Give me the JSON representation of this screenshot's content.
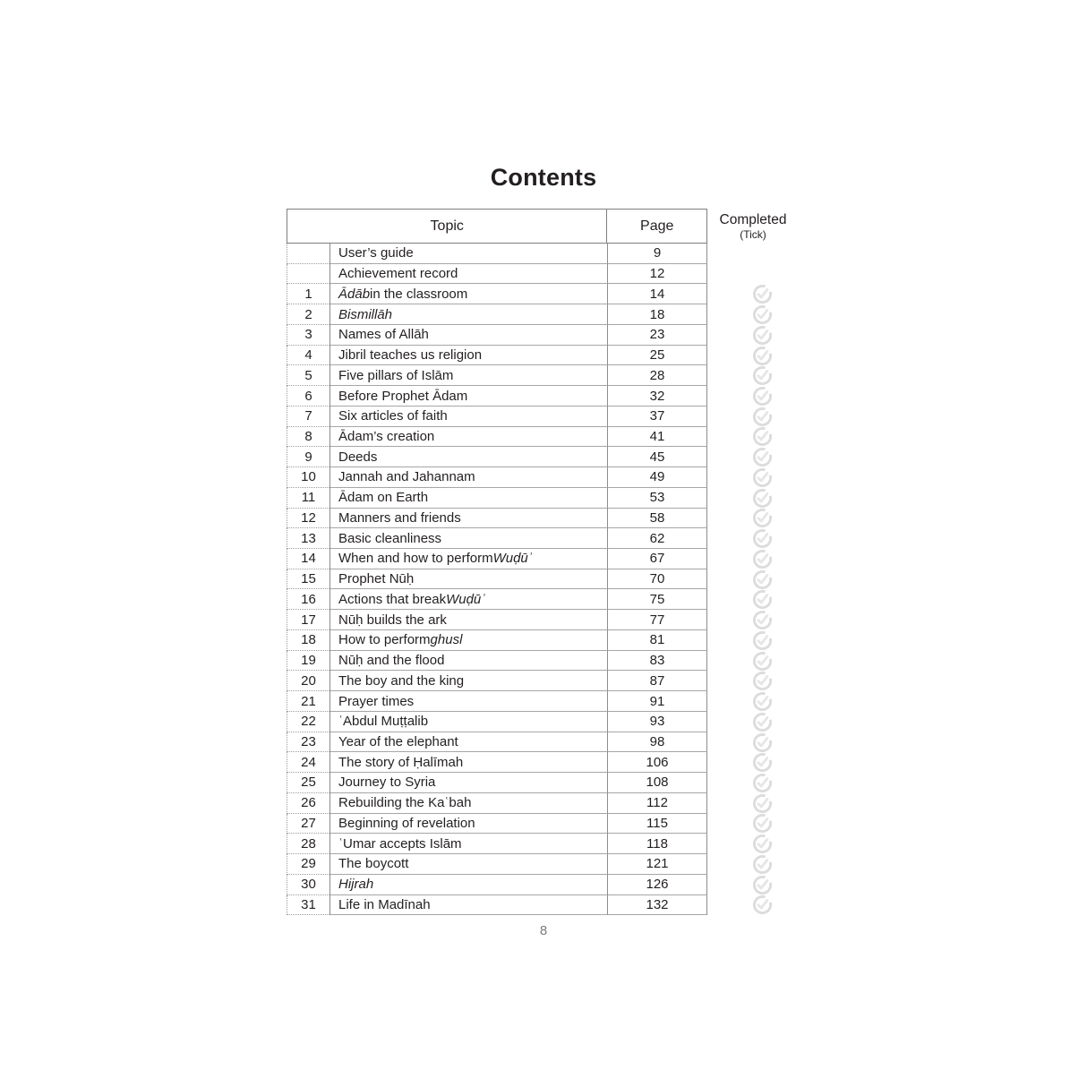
{
  "page": {
    "title": "Contents",
    "footer_page_number": "8"
  },
  "colors": {
    "text": "#231f20",
    "border_solid": "#8c8c8c",
    "border_row": "#a6a6a6",
    "border_dotted": "#9b9b9b",
    "tick_ring": "#dcdcdc",
    "tick_check": "#e6e6e6",
    "footer_gray": "#7b7b7b"
  },
  "table": {
    "headers": {
      "topic": "Topic",
      "page": "Page"
    },
    "completed_label": "Completed",
    "completed_sub": "(Tick)",
    "tick_icon": "check-circle-icon",
    "rows": [
      {
        "num": "",
        "topic": [
          {
            "text": "User’s guide",
            "italic": false
          }
        ],
        "page": "9",
        "tick": false
      },
      {
        "num": "",
        "topic": [
          {
            "text": "Achievement record",
            "italic": false
          }
        ],
        "page": "12",
        "tick": false
      },
      {
        "num": "1",
        "topic": [
          {
            "text": "Ādāb",
            "italic": true
          },
          {
            "text": " in the classroom",
            "italic": false
          }
        ],
        "page": "14",
        "tick": true
      },
      {
        "num": "2",
        "topic": [
          {
            "text": "Bismillāh",
            "italic": true
          }
        ],
        "page": "18",
        "tick": true
      },
      {
        "num": "3",
        "topic": [
          {
            "text": "Names of Allāh",
            "italic": false
          }
        ],
        "page": "23",
        "tick": true
      },
      {
        "num": "4",
        "topic": [
          {
            "text": "Jibril teaches us religion",
            "italic": false
          }
        ],
        "page": "25",
        "tick": true
      },
      {
        "num": "5",
        "topic": [
          {
            "text": "Five pillars of Islām",
            "italic": false
          }
        ],
        "page": "28",
        "tick": true
      },
      {
        "num": "6",
        "topic": [
          {
            "text": "Before Prophet Ādam",
            "italic": false
          }
        ],
        "page": "32",
        "tick": true
      },
      {
        "num": "7",
        "topic": [
          {
            "text": "Six articles of faith",
            "italic": false
          }
        ],
        "page": "37",
        "tick": true
      },
      {
        "num": "8",
        "topic": [
          {
            "text": "Ādam’s creation",
            "italic": false
          }
        ],
        "page": "41",
        "tick": true
      },
      {
        "num": "9",
        "topic": [
          {
            "text": "Deeds",
            "italic": false
          }
        ],
        "page": "45",
        "tick": true
      },
      {
        "num": "10",
        "topic": [
          {
            "text": "Jannah and Jahannam",
            "italic": false
          }
        ],
        "page": "49",
        "tick": true
      },
      {
        "num": "11",
        "topic": [
          {
            "text": "Ādam on Earth",
            "italic": false
          }
        ],
        "page": "53",
        "tick": true
      },
      {
        "num": "12",
        "topic": [
          {
            "text": "Manners and friends",
            "italic": false
          }
        ],
        "page": "58",
        "tick": true
      },
      {
        "num": "13",
        "topic": [
          {
            "text": "Basic cleanliness",
            "italic": false
          }
        ],
        "page": "62",
        "tick": true
      },
      {
        "num": "14",
        "topic": [
          {
            "text": "When and how to perform ",
            "italic": false
          },
          {
            "text": "Wuḍūʾ",
            "italic": true
          }
        ],
        "page": "67",
        "tick": true
      },
      {
        "num": "15",
        "topic": [
          {
            "text": "Prophet Nūḥ",
            "italic": false
          }
        ],
        "page": "70",
        "tick": true
      },
      {
        "num": "16",
        "topic": [
          {
            "text": "Actions that break ",
            "italic": false
          },
          {
            "text": "Wuḍūʾ",
            "italic": true
          }
        ],
        "page": "75",
        "tick": true
      },
      {
        "num": "17",
        "topic": [
          {
            "text": "Nūḥ builds the ark",
            "italic": false
          }
        ],
        "page": "77",
        "tick": true
      },
      {
        "num": "18",
        "topic": [
          {
            "text": "How to perform ",
            "italic": false
          },
          {
            "text": "ghusl",
            "italic": true
          }
        ],
        "page": "81",
        "tick": true
      },
      {
        "num": "19",
        "topic": [
          {
            "text": "Nūḥ and the flood",
            "italic": false
          }
        ],
        "page": "83",
        "tick": true
      },
      {
        "num": "20",
        "topic": [
          {
            "text": "The boy and the king",
            "italic": false
          }
        ],
        "page": "87",
        "tick": true
      },
      {
        "num": "21",
        "topic": [
          {
            "text": "Prayer times",
            "italic": false
          }
        ],
        "page": "91",
        "tick": true
      },
      {
        "num": "22",
        "topic": [
          {
            "text": "ʿAbdul Muṭṭalib",
            "italic": false
          }
        ],
        "page": "93",
        "tick": true
      },
      {
        "num": "23",
        "topic": [
          {
            "text": "Year of the elephant",
            "italic": false
          }
        ],
        "page": "98",
        "tick": true
      },
      {
        "num": "24",
        "topic": [
          {
            "text": "The story of Ḥalīmah",
            "italic": false
          }
        ],
        "page": "106",
        "tick": true
      },
      {
        "num": "25",
        "topic": [
          {
            "text": "Journey to Syria",
            "italic": false
          }
        ],
        "page": "108",
        "tick": true
      },
      {
        "num": "26",
        "topic": [
          {
            "text": "Rebuilding the Kaʿbah",
            "italic": false
          }
        ],
        "page": "112",
        "tick": true
      },
      {
        "num": "27",
        "topic": [
          {
            "text": "Beginning of revelation",
            "italic": false
          }
        ],
        "page": "115",
        "tick": true
      },
      {
        "num": "28",
        "topic": [
          {
            "text": "ʿUmar accepts Islām",
            "italic": false
          }
        ],
        "page": "118",
        "tick": true
      },
      {
        "num": "29",
        "topic": [
          {
            "text": "The boycott",
            "italic": false
          }
        ],
        "page": "121",
        "tick": true
      },
      {
        "num": "30",
        "topic": [
          {
            "text": "Hijrah",
            "italic": true
          }
        ],
        "page": "126",
        "tick": true
      },
      {
        "num": "31",
        "topic": [
          {
            "text": "Life in Madīnah",
            "italic": false
          }
        ],
        "page": "132",
        "tick": true
      }
    ]
  }
}
